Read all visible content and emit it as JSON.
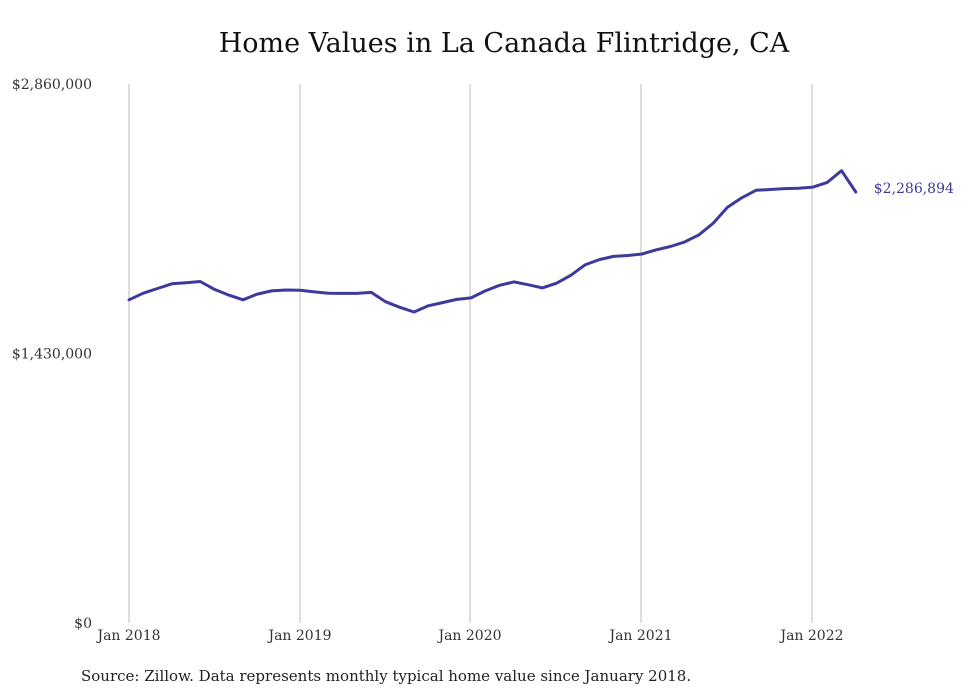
{
  "chart_data": {
    "type": "line",
    "title": "Home Values in La Canada Flintridge, CA",
    "xlabel": "",
    "ylabel": "",
    "ylim": [
      0,
      2860000
    ],
    "y_ticks": [
      {
        "value": 0,
        "label": "$0"
      },
      {
        "value": 1430000,
        "label": "$1,430,000"
      },
      {
        "value": 2860000,
        "label": "$2,860,000"
      }
    ],
    "x_ticks": [
      {
        "value": "2018-01",
        "label": "Jan 2018"
      },
      {
        "value": "2019-01",
        "label": "Jan 2019"
      },
      {
        "value": "2020-01",
        "label": "Jan 2020"
      },
      {
        "value": "2021-01",
        "label": "Jan 2021"
      },
      {
        "value": "2022-01",
        "label": "Jan 2022"
      }
    ],
    "grid": {
      "vertical": true,
      "horizontal": false
    },
    "series": [
      {
        "color": "#3d3a9b",
        "x": [
          "2018-01",
          "2018-02",
          "2018-03",
          "2018-04",
          "2018-05",
          "2018-06",
          "2018-07",
          "2018-08",
          "2018-09",
          "2018-10",
          "2018-11",
          "2018-12",
          "2019-01",
          "2019-02",
          "2019-03",
          "2019-04",
          "2019-05",
          "2019-06",
          "2019-07",
          "2019-08",
          "2019-09",
          "2019-10",
          "2019-11",
          "2019-12",
          "2020-01",
          "2020-02",
          "2020-03",
          "2020-04",
          "2020-05",
          "2020-06",
          "2020-07",
          "2020-08",
          "2020-09",
          "2020-10",
          "2020-11",
          "2020-12",
          "2021-01",
          "2021-02",
          "2021-03",
          "2021-04",
          "2021-05",
          "2021-06",
          "2021-07",
          "2021-08",
          "2021-09",
          "2021-10",
          "2021-11",
          "2021-12",
          "2022-01",
          "2022-02",
          "2022-03",
          "2022-04"
        ],
        "values": [
          1715000,
          1750000,
          1775000,
          1800000,
          1805000,
          1812000,
          1770000,
          1740000,
          1715000,
          1745000,
          1762000,
          1767000,
          1766000,
          1757000,
          1750000,
          1749000,
          1749000,
          1754000,
          1705000,
          1675000,
          1650000,
          1683000,
          1700000,
          1717000,
          1725000,
          1762000,
          1792000,
          1810000,
          1795000,
          1778000,
          1803000,
          1845000,
          1900000,
          1928000,
          1945000,
          1950000,
          1958000,
          1980000,
          1998000,
          2022000,
          2060000,
          2122000,
          2206000,
          2256000,
          2296000,
          2300000,
          2305000,
          2307000,
          2313000,
          2338000,
          2400000,
          2286894
        ],
        "end_label": "$2,286,894"
      }
    ]
  },
  "footer": {
    "source": "Source: Zillow. Data represents monthly typical home value since January 2018."
  }
}
